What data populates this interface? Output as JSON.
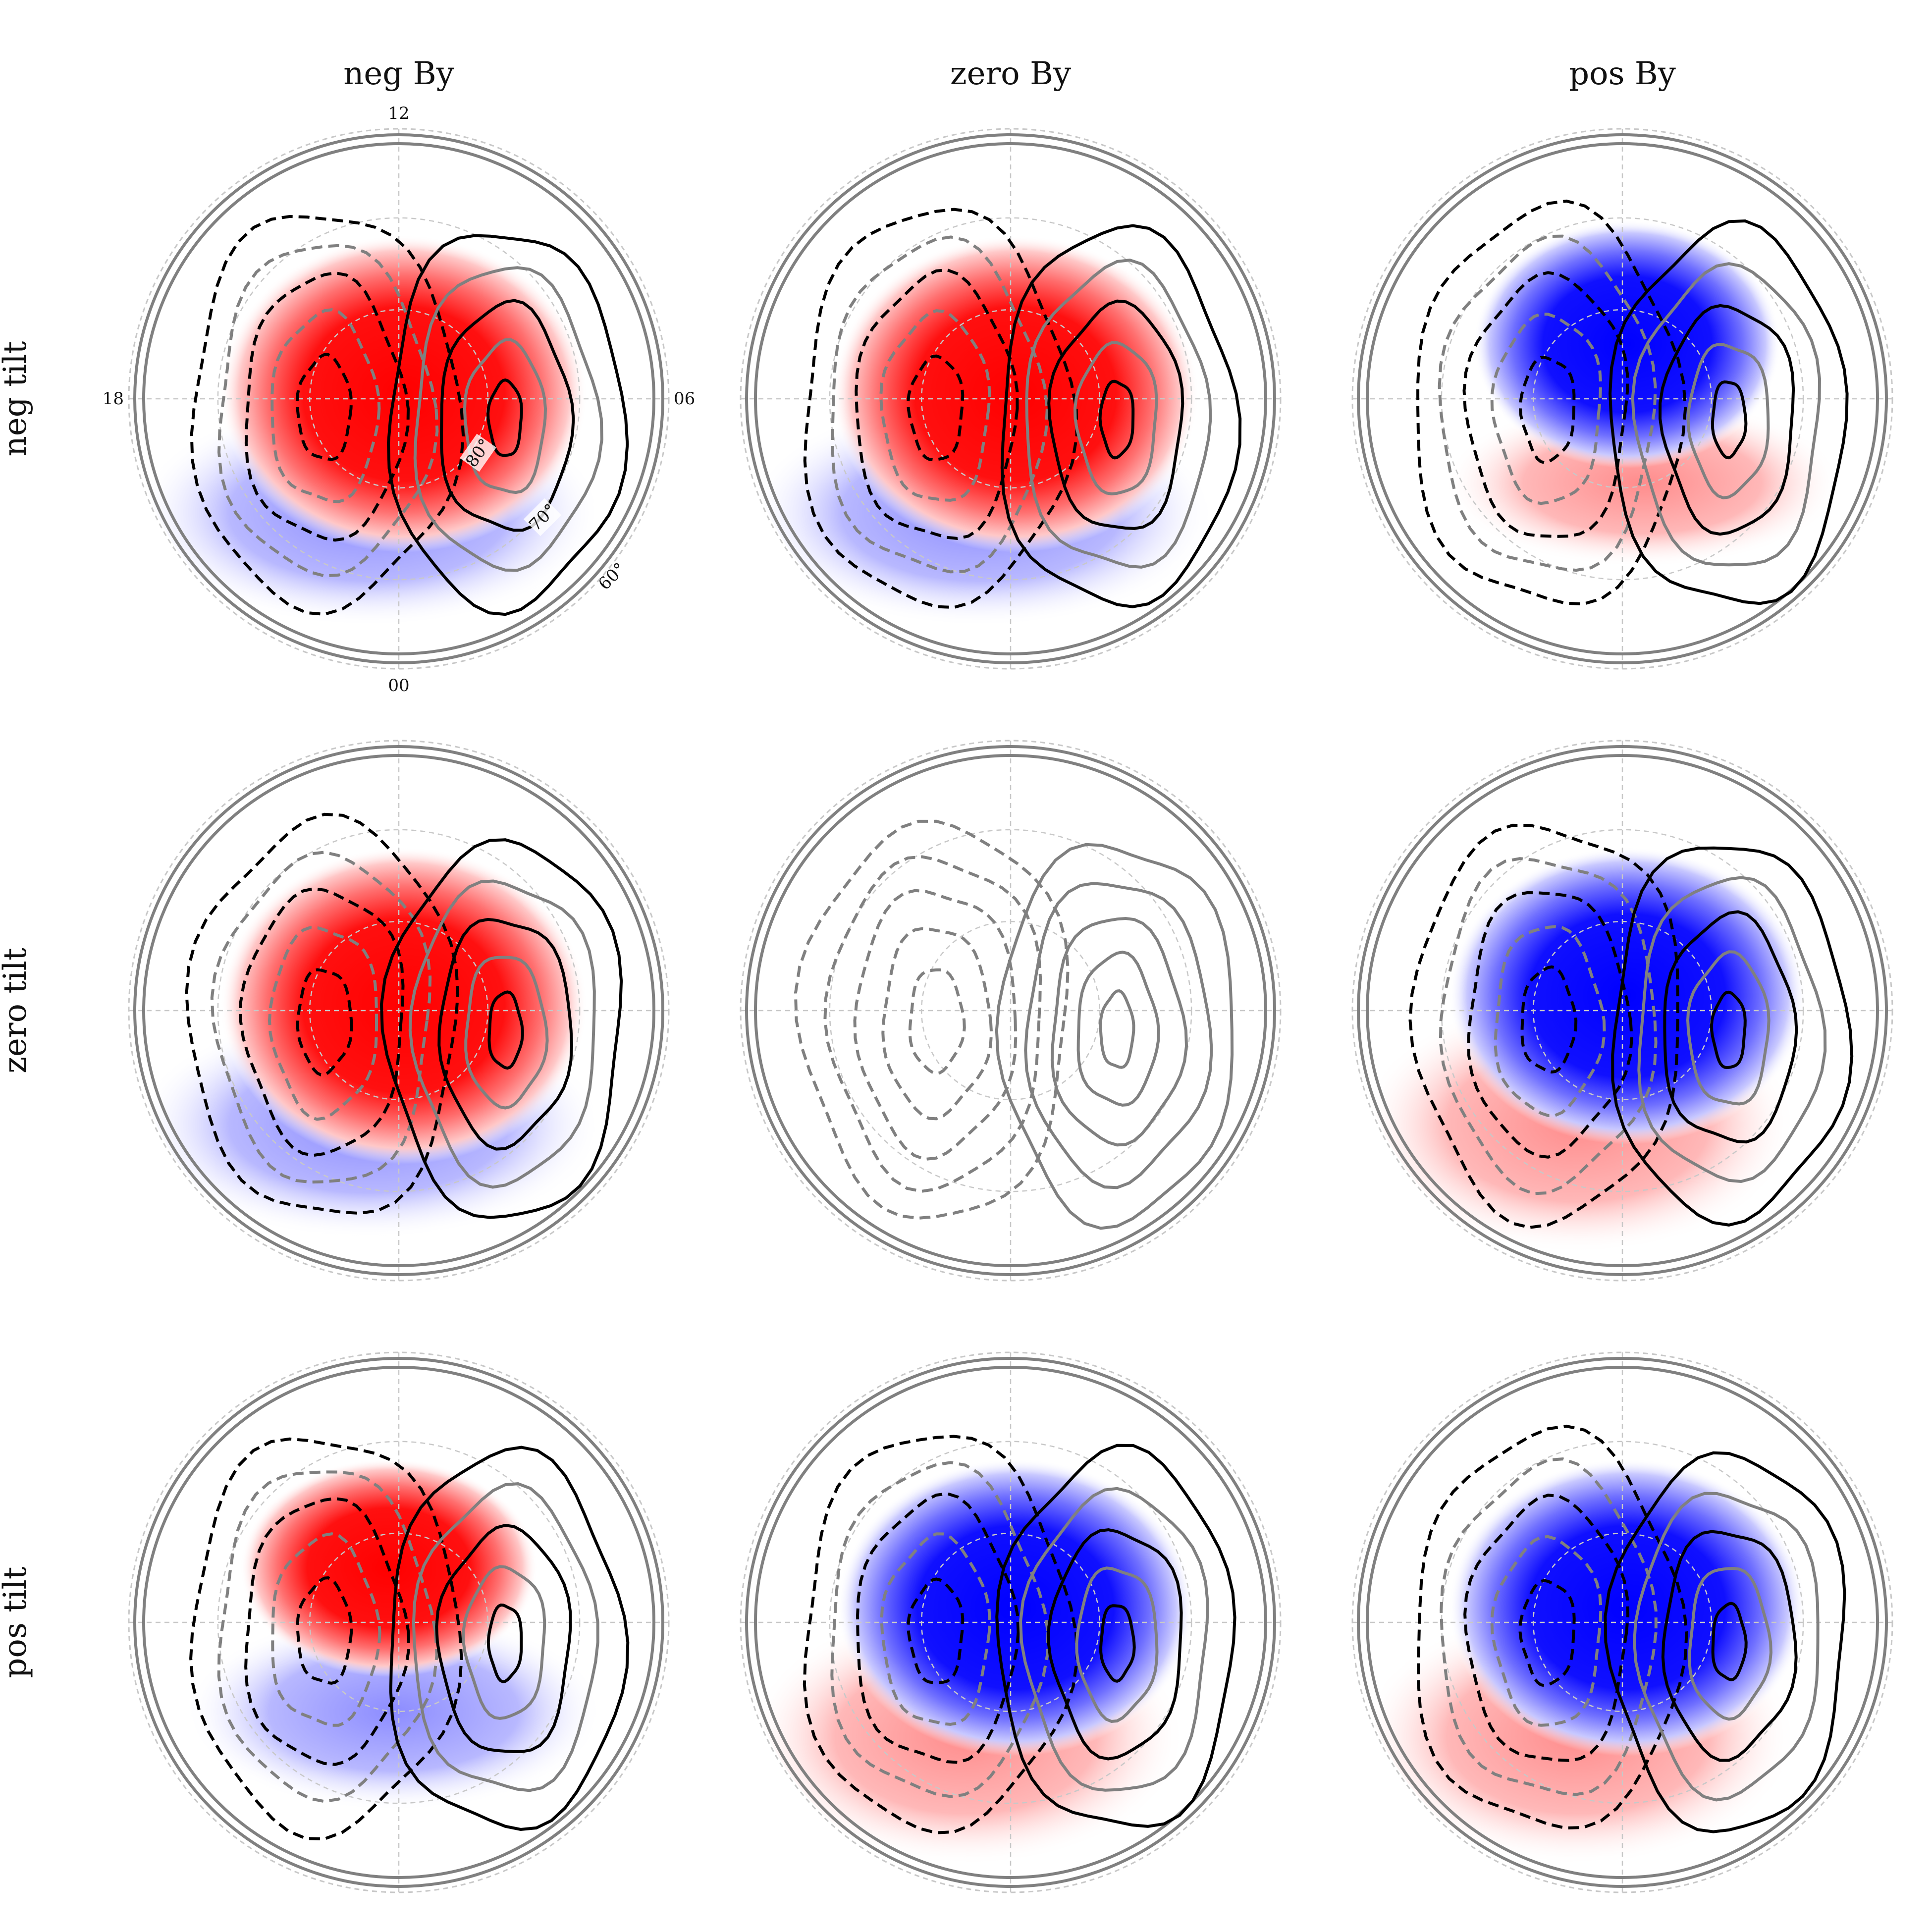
{
  "columns": [
    "neg By",
    "zero By",
    "pos By"
  ],
  "rows": [
    "neg tilt",
    "zero tilt",
    "pos tilt"
  ],
  "mlt_labels": {
    "top": "12",
    "left": "18",
    "right": "06",
    "bottom": "00"
  },
  "lat_labels": [
    "80°",
    "70°",
    "60°"
  ],
  "colors": {
    "positive": "#ff0000",
    "negative": "#0000ff",
    "contour_black": "#000000",
    "contour_gray": "#808080",
    "grid": "#c8c8c8"
  },
  "panels": [
    {
      "row": "neg tilt",
      "col": "neg By",
      "pattern": "red-dominant"
    },
    {
      "row": "neg tilt",
      "col": "zero By",
      "pattern": "red-dominant"
    },
    {
      "row": "neg tilt",
      "col": "pos By",
      "pattern": "blue-dawn red-dusk"
    },
    {
      "row": "zero tilt",
      "col": "neg By",
      "pattern": "red-dominant"
    },
    {
      "row": "zero tilt",
      "col": "zero By",
      "pattern": "contours-only"
    },
    {
      "row": "zero tilt",
      "col": "pos By",
      "pattern": "blue-dominant"
    },
    {
      "row": "pos tilt",
      "col": "neg By",
      "pattern": "red-top blue-bottom"
    },
    {
      "row": "pos tilt",
      "col": "zero By",
      "pattern": "blue-dominant"
    },
    {
      "row": "pos tilt",
      "col": "pos By",
      "pattern": "blue-dominant"
    }
  ]
}
